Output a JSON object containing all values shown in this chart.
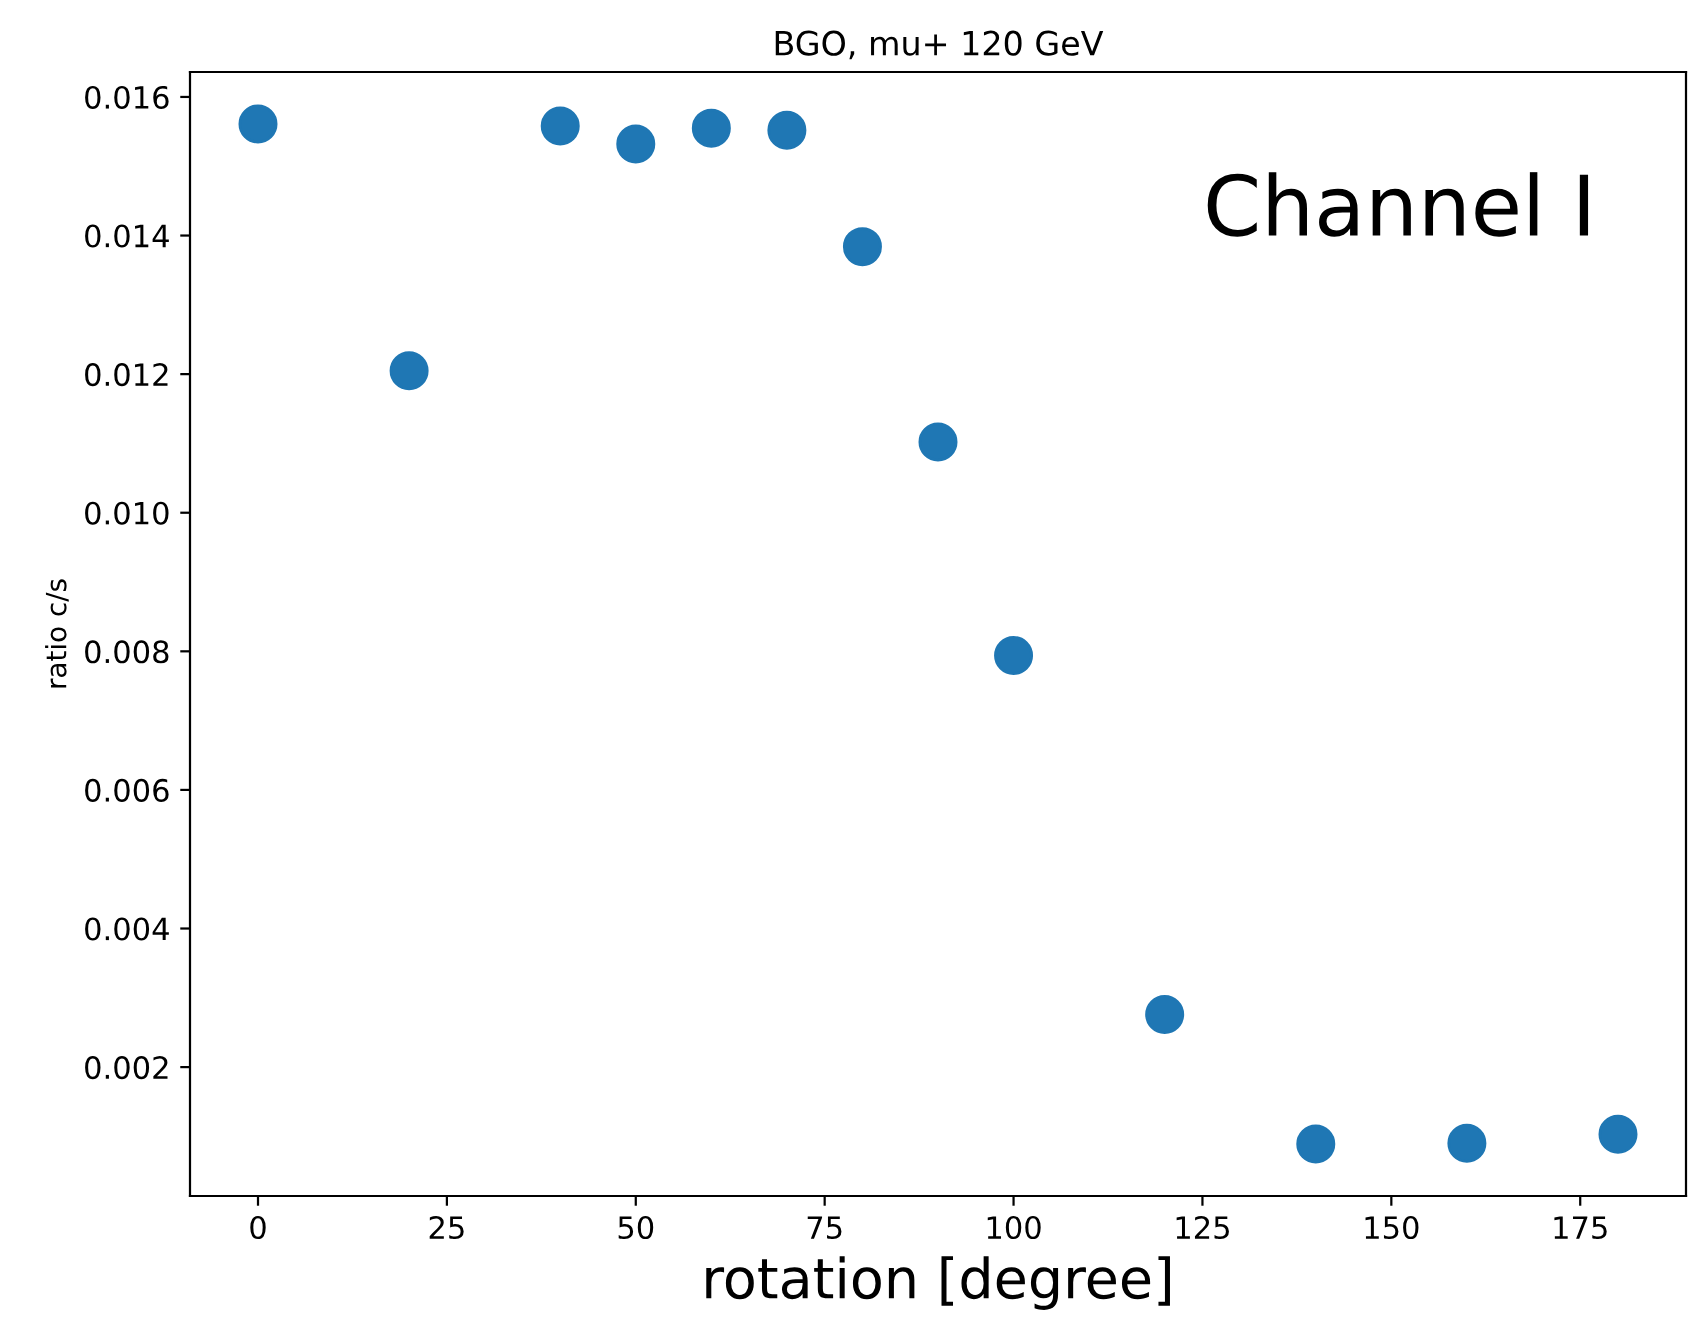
{
  "chart_data": {
    "type": "scatter",
    "title": "BGO, mu+ 120 GeV",
    "xlabel": "rotation [degree]",
    "ylabel": "ratio c/s",
    "annotations": [
      "Channel I"
    ],
    "x": [
      0,
      20,
      40,
      50,
      60,
      70,
      80,
      90,
      100,
      120,
      140,
      160,
      180
    ],
    "series": [
      {
        "color": "#1f77b4",
        "values": [
          0.01561,
          0.01205,
          0.01558,
          0.01532,
          0.01555,
          0.01552,
          0.01384,
          0.01102,
          0.00794,
          0.00276,
          0.00089,
          0.0009,
          0.00103
        ]
      }
    ],
    "xlim": [
      -9,
      189
    ],
    "ylim": [
      0.00014,
      0.01636
    ],
    "xticks": [
      0,
      25,
      50,
      75,
      100,
      125,
      150,
      175
    ],
    "yticks": [
      0.002,
      0.004,
      0.006,
      0.008,
      {
        "value": 0.01,
        "label": "0.010"
      },
      0.012,
      0.014,
      0.016
    ],
    "grid": false,
    "legend": false,
    "marker": "circle"
  }
}
